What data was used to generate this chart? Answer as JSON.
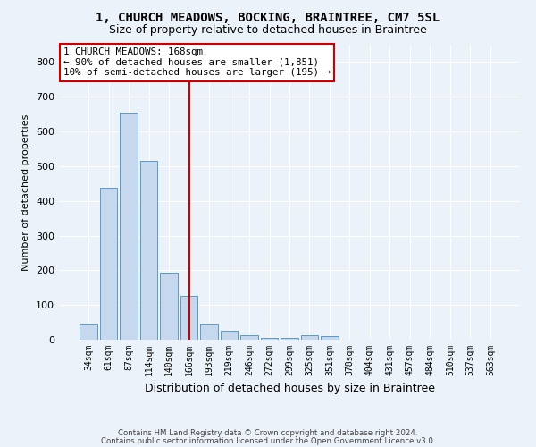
{
  "title1": "1, CHURCH MEADOWS, BOCKING, BRAINTREE, CM7 5SL",
  "title2": "Size of property relative to detached houses in Braintree",
  "xlabel": "Distribution of detached houses by size in Braintree",
  "ylabel": "Number of detached properties",
  "bar_labels": [
    "34sqm",
    "61sqm",
    "87sqm",
    "114sqm",
    "140sqm",
    "166sqm",
    "193sqm",
    "219sqm",
    "246sqm",
    "272sqm",
    "299sqm",
    "325sqm",
    "351sqm",
    "378sqm",
    "404sqm",
    "431sqm",
    "457sqm",
    "484sqm",
    "510sqm",
    "537sqm",
    "563sqm"
  ],
  "bar_values": [
    47,
    437,
    655,
    515,
    193,
    127,
    47,
    25,
    12,
    5,
    5,
    12,
    10,
    0,
    0,
    0,
    0,
    0,
    0,
    0,
    0
  ],
  "bar_color": "#c5d8ed",
  "bar_edge_color": "#5a9ac8",
  "property_line_x": 5.0,
  "property_line_color": "#cc0000",
  "annotation_text": "1 CHURCH MEADOWS: 168sqm\n← 90% of detached houses are smaller (1,851)\n10% of semi-detached houses are larger (195) →",
  "annotation_box_color": "#cc0000",
  "ylim": [
    0,
    850
  ],
  "yticks": [
    0,
    100,
    200,
    300,
    400,
    500,
    600,
    700,
    800
  ],
  "footer1": "Contains HM Land Registry data © Crown copyright and database right 2024.",
  "footer2": "Contains public sector information licensed under the Open Government Licence v3.0.",
  "bg_color": "#ecf2f9",
  "grid_color": "#ffffff"
}
